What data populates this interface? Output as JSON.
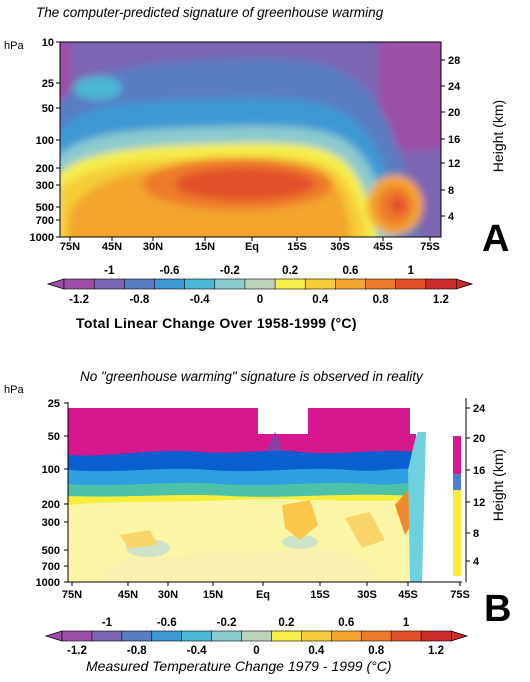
{
  "chart_data": [
    {
      "type": "heatmap",
      "panel": "A",
      "title": "The computer-predicted signature of greenhouse warming",
      "colorbar_label": "Total Linear Change Over 1958-1999 (°C)",
      "y_unit": "hPa",
      "y_right_label": "Height (km)",
      "x_ticks": [
        "75N",
        "45N",
        "30N",
        "15N",
        "Eq",
        "15S",
        "30S",
        "45S",
        "75S"
      ],
      "y_ticks": [
        "10",
        "25",
        "50",
        "100",
        "200",
        "300",
        "500",
        "700",
        "1000"
      ],
      "y_ticks_values": [
        10,
        25,
        50,
        100,
        200,
        300,
        500,
        700,
        1000
      ],
      "height_ticks": [
        "28",
        "24",
        "20",
        "16",
        "12",
        "8",
        "4"
      ],
      "height_ticks_values": [
        28,
        24,
        20,
        16,
        12,
        8,
        4
      ]
    },
    {
      "type": "heatmap",
      "panel": "B",
      "title": "No \"greenhouse warming\" signature is observed in reality",
      "colorbar_label": "Measured Temperature Change 1979 - 1999 (°C)",
      "y_unit": "hPa",
      "y_right_label": "Height (km)",
      "x_ticks": [
        "75N",
        "45N",
        "30N",
        "15N",
        "Eq",
        "15S",
        "30S",
        "45S",
        "75S"
      ],
      "y_ticks": [
        "25",
        "50",
        "100",
        "200",
        "300",
        "500",
        "700",
        "1000"
      ],
      "y_ticks_values": [
        25,
        50,
        100,
        200,
        300,
        500,
        700,
        1000
      ],
      "height_ticks": [
        "24",
        "20",
        "16",
        "12",
        "8",
        "4"
      ],
      "height_ticks_values": [
        24,
        20,
        16,
        12,
        8,
        4
      ]
    }
  ],
  "colorbar": {
    "top_ticks": [
      "-1",
      "-0.6",
      "-0.2",
      "0.2",
      "0.6",
      "1"
    ],
    "bottom_ticks": [
      "-1.2",
      "-0.8",
      "-0.4",
      "0",
      "0.4",
      "0.8",
      "1.2"
    ],
    "top_values": [
      -1,
      -0.6,
      -0.2,
      0.2,
      0.6,
      1
    ],
    "bottom_values": [
      -1.2,
      -0.8,
      -0.4,
      0,
      0.4,
      0.8,
      1.2
    ],
    "colors": [
      "#9b4fa6",
      "#7b65b3",
      "#5a7cc2",
      "#3d98d4",
      "#4cb8d6",
      "#8ccbcf",
      "#bcd3b9",
      "#f6ee4a",
      "#f5cd38",
      "#f3a52e",
      "#ee7a2b",
      "#e2502a",
      "#cb2b2b"
    ]
  },
  "panel_letters": {
    "a": "A",
    "b": "B"
  }
}
